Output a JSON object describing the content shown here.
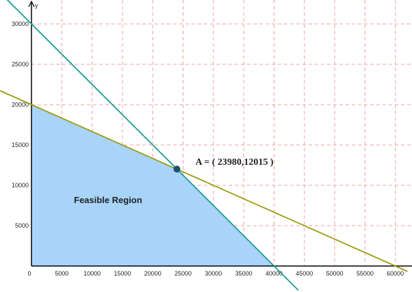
{
  "chart_data": {
    "type": "line",
    "y_label": "y",
    "xlim": [
      -5190,
      62750
    ],
    "ylim": [
      -3220,
      32970
    ],
    "xticks": [
      0,
      5000,
      10000,
      15000,
      20000,
      25000,
      30000,
      35000,
      40000,
      45000,
      50000,
      55000,
      60000
    ],
    "yticks": [
      5000,
      10000,
      15000,
      20000,
      25000,
      30000
    ],
    "grid": true,
    "grid_color": "#f0a0a0",
    "region": {
      "label": "Feasible Region",
      "color": "#a8d4fa",
      "x": [
        0,
        0,
        23980,
        40000
      ],
      "values": [
        0,
        20000,
        12015,
        0
      ]
    },
    "series": [
      {
        "color": "#1a9a9a",
        "x": [
          -4400,
          44000
        ],
        "values": [
          33300,
          -3000
        ]
      },
      {
        "color": "#9a9a10",
        "x": [
          -5190,
          62000
        ],
        "values": [
          21730,
          -667
        ]
      }
    ],
    "point": {
      "label": "A =  ( 23980,12015 )",
      "x": 23980,
      "y": 12015,
      "color": "#1f4e6e"
    }
  }
}
